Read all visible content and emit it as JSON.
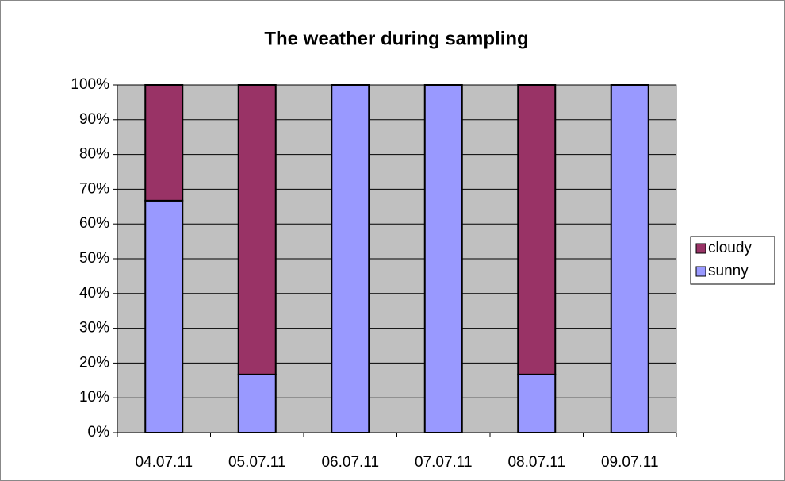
{
  "chart_data": {
    "type": "stacked_bar",
    "title": "The weather during sampling",
    "categories": [
      "04.07.11",
      "05.07.11",
      "06.07.11",
      "07.07.11",
      "08.07.11",
      "09.07.11"
    ],
    "series": [
      {
        "name": "sunny",
        "color": "#9999ff",
        "values": [
          66.7,
          16.7,
          100,
          100,
          16.7,
          100
        ]
      },
      {
        "name": "cloudy",
        "color": "#993366",
        "values": [
          33.3,
          83.3,
          0,
          0,
          83.3,
          0
        ]
      }
    ],
    "ylim": [
      0,
      100
    ],
    "yticks": [
      {
        "value": 0,
        "label": "0%"
      },
      {
        "value": 10,
        "label": "10%"
      },
      {
        "value": 20,
        "label": "20%"
      },
      {
        "value": 30,
        "label": "30%"
      },
      {
        "value": 40,
        "label": "40%"
      },
      {
        "value": 50,
        "label": "50%"
      },
      {
        "value": 60,
        "label": "60%"
      },
      {
        "value": 70,
        "label": "70%"
      },
      {
        "value": 80,
        "label": "80%"
      },
      {
        "value": 90,
        "label": "90%"
      },
      {
        "value": 100,
        "label": "100%"
      }
    ],
    "grid": true,
    "legend": "right"
  }
}
